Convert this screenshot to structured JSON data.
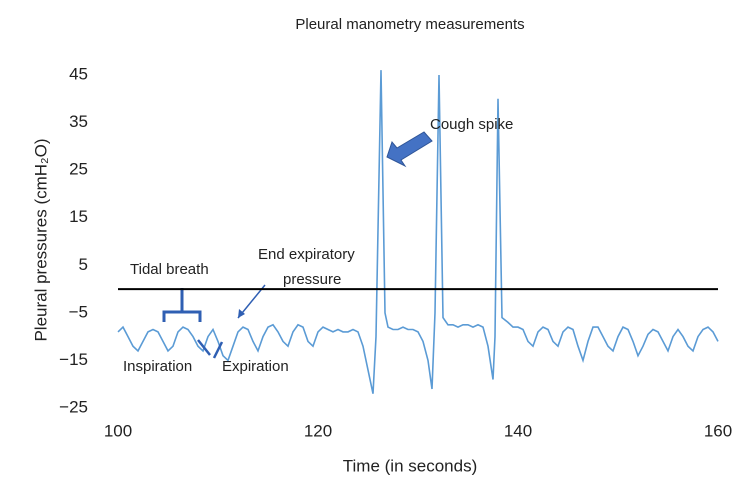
{
  "chart_data": {
    "type": "line",
    "title": "Pleural manometry measurements",
    "x_label": "Time (in seconds)",
    "y_label": "Pleural pressures (cmH₂O)",
    "annotations": [
      "Tidal breath",
      "End expiratory",
      "pressure",
      "Cough spike",
      "Inspiration",
      "Expiration"
    ],
    "hline": 0,
    "xlim": [
      100,
      160
    ],
    "xticks": [
      100,
      120,
      140,
      160
    ],
    "ylim": [
      -25,
      45
    ],
    "yticks": [
      {
        "value": -25,
        "label": "−25"
      },
      {
        "value": -15,
        "label": "−15"
      },
      {
        "value": -5,
        "label": "−5"
      },
      5,
      15,
      25,
      35,
      45
    ],
    "series": [
      {
        "color": "#5b9bd5",
        "x": [
          100,
          100.5,
          101,
          101.5,
          102,
          102.5,
          103,
          103.5,
          104,
          104.5,
          105,
          105.5,
          106,
          106.5,
          107,
          107.5,
          108,
          108.5,
          109,
          109.5,
          110,
          110.5,
          111,
          111.5,
          112,
          112.5,
          113,
          113.5,
          114,
          114.5,
          115,
          115.5,
          116,
          116.5,
          117,
          117.5,
          118,
          118.5,
          119,
          119.5,
          120,
          120.5,
          121,
          121.5,
          122,
          122.5,
          123,
          123.5,
          124,
          124.5,
          125,
          125.5,
          125.8,
          126.3,
          126.7,
          127,
          127.5,
          128,
          128.5,
          129,
          129.5,
          130,
          130.5,
          131,
          131.4,
          131.7,
          132.1,
          132.5,
          133,
          133.5,
          134,
          134.5,
          135,
          135.5,
          136,
          136.5,
          137,
          137.5,
          137.7,
          138,
          138.4,
          139,
          139.5,
          140,
          140.5,
          141,
          141.5,
          142,
          142.5,
          143,
          143.5,
          144,
          144.5,
          145,
          145.5,
          146,
          146.5,
          147,
          147.5,
          148,
          148.5,
          149,
          149.5,
          150,
          150.5,
          151,
          151.5,
          152,
          152.5,
          153,
          153.5,
          154,
          154.5,
          155,
          155.5,
          156,
          156.5,
          157,
          157.5,
          158,
          158.5,
          159,
          159.5,
          160
        ],
        "values": [
          -9,
          -8,
          -10,
          -12,
          -13,
          -11,
          -9,
          -8.5,
          -9,
          -11,
          -13,
          -12,
          -9,
          -8,
          -8.5,
          -10,
          -12,
          -13,
          -10,
          -8.5,
          -11,
          -14,
          -15,
          -12,
          -9,
          -8,
          -8.5,
          -11,
          -13,
          -10,
          -8,
          -7.5,
          -9,
          -11,
          -12,
          -9,
          -7.5,
          -8,
          -11,
          -12,
          -9,
          -8,
          -8.5,
          -9,
          -8.5,
          -9,
          -9,
          -8.5,
          -9,
          -12,
          -17,
          -22,
          -10,
          46,
          -5,
          -8,
          -8.5,
          -8.5,
          -8,
          -8.5,
          -8.5,
          -9,
          -11,
          -15,
          -21,
          -5,
          45,
          -6,
          -7.5,
          -7.5,
          -8,
          -7.5,
          -7.5,
          -8,
          -7.5,
          -8,
          -12,
          -19,
          -10,
          40,
          -6,
          -7,
          -8,
          -8,
          -8.5,
          -11,
          -12,
          -9,
          -8,
          -8.5,
          -11,
          -12,
          -9,
          -8,
          -8.5,
          -12,
          -15,
          -11,
          -8,
          -8,
          -10,
          -12,
          -13,
          -10,
          -8,
          -8.5,
          -11,
          -14,
          -12,
          -9.5,
          -8.5,
          -9,
          -11,
          -13,
          -10,
          -8.5,
          -10,
          -12,
          -13,
          -10,
          -8.5,
          -8,
          -9,
          -11
        ]
      }
    ]
  }
}
